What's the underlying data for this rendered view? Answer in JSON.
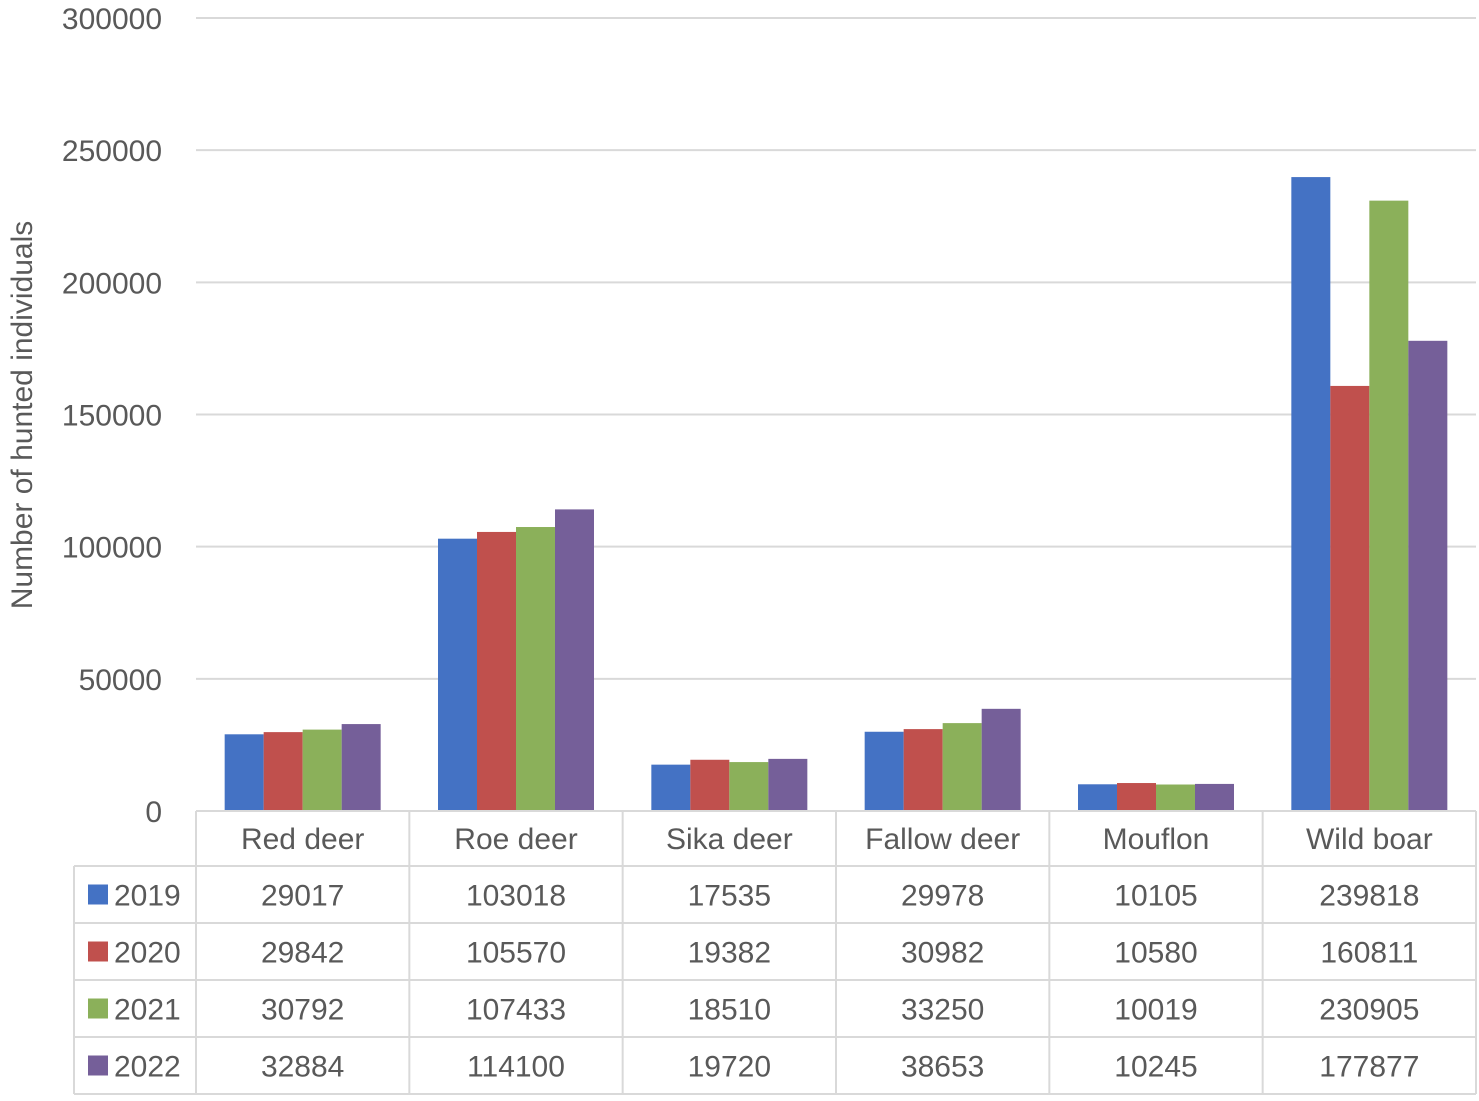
{
  "chart_data": {
    "type": "bar",
    "title": "",
    "xlabel": "",
    "ylabel": "Number of hunted individuals",
    "ylim": [
      0,
      300000
    ],
    "yticks": [
      0,
      50000,
      100000,
      150000,
      200000,
      250000,
      300000
    ],
    "ytick_labels": [
      "0",
      "50000",
      "100000",
      "150000",
      "200000",
      "250000",
      "300000"
    ],
    "grid": true,
    "legend": "data-table",
    "categories": [
      "Red deer",
      "Roe deer",
      "Sika deer",
      "Fallow deer",
      "Mouflon",
      "Wild boar"
    ],
    "series": [
      {
        "name": "2019",
        "color": "#4472C4",
        "values": [
          29017,
          103018,
          17535,
          29978,
          10105,
          239818
        ]
      },
      {
        "name": "2020",
        "color": "#C0504D",
        "values": [
          29842,
          105570,
          19382,
          30982,
          10580,
          160811
        ]
      },
      {
        "name": "2021",
        "color": "#8BB05A",
        "values": [
          30792,
          107433,
          18510,
          33250,
          10019,
          230905
        ]
      },
      {
        "name": "2022",
        "color": "#755F99",
        "values": [
          32884,
          114100,
          19720,
          38653,
          10245,
          177877
        ]
      }
    ],
    "table_values": [
      [
        "29017",
        "103018",
        "17535",
        "29978",
        "10105",
        "239818"
      ],
      [
        "29842",
        "105570",
        "19382",
        "30982",
        "10580",
        "160811"
      ],
      [
        "30792",
        "107433",
        "18510",
        "33250",
        "10019",
        "230905"
      ],
      [
        "32884",
        "114100",
        "19720",
        "38653",
        "10245",
        "177877"
      ]
    ]
  }
}
